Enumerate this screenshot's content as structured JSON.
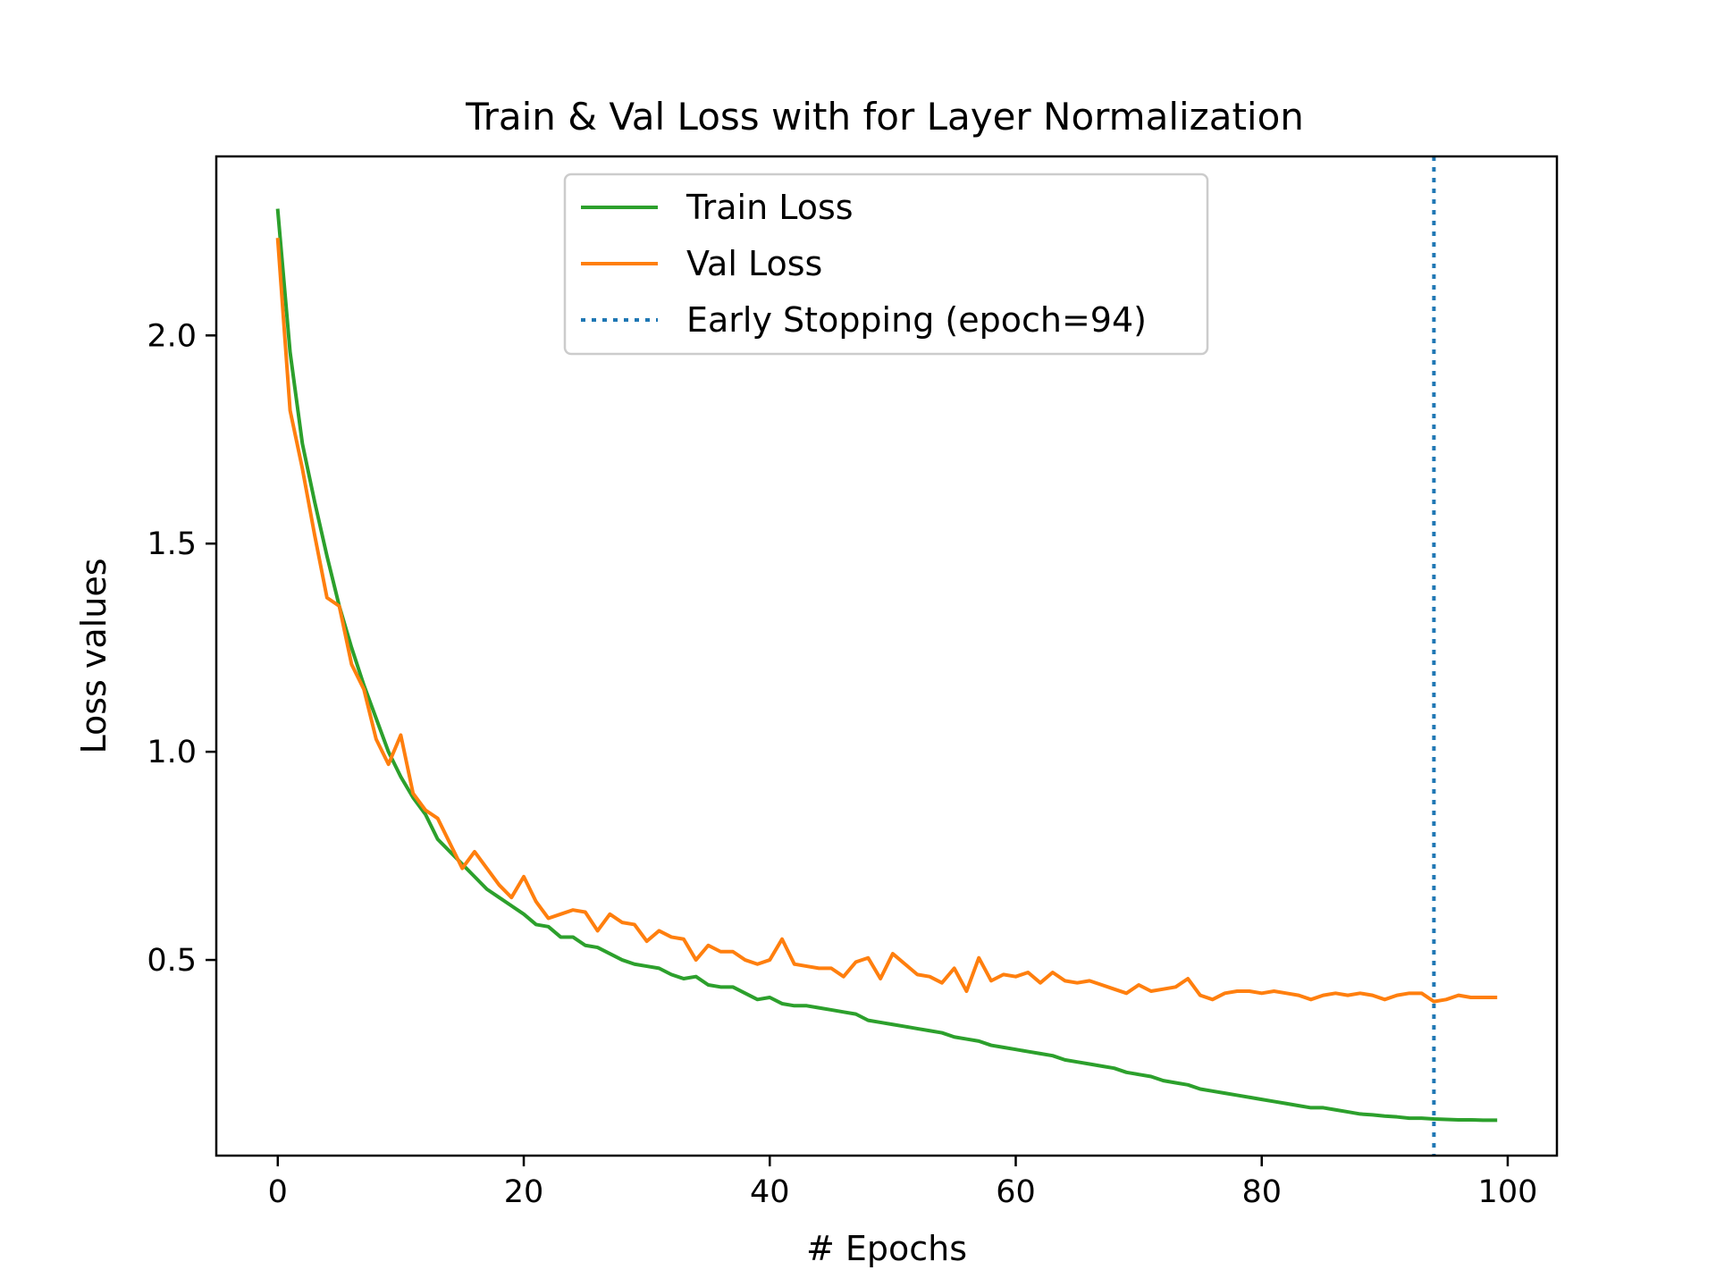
{
  "chart_data": {
    "type": "line",
    "title": "Train & Val Loss with for Layer Normalization",
    "xlabel": "# Epochs",
    "ylabel": "Loss values",
    "xlim": [
      -5,
      104
    ],
    "ylim": [
      0.03,
      2.43
    ],
    "x_ticks": [
      0,
      20,
      40,
      60,
      80,
      100
    ],
    "y_ticks": [
      0.5,
      1.0,
      1.5,
      2.0
    ],
    "x_tick_labels": [
      "0",
      "20",
      "40",
      "60",
      "80",
      "100"
    ],
    "y_tick_labels": [
      "0.5",
      "1.0",
      "1.5",
      "2.0"
    ],
    "grid": false,
    "legend_position": "top-center",
    "series": [
      {
        "name": "Train Loss",
        "color": "#2ca02c",
        "style": "solid",
        "values": [
          2.3,
          1.96,
          1.74,
          1.6,
          1.47,
          1.35,
          1.25,
          1.16,
          1.08,
          1.0,
          0.94,
          0.89,
          0.85,
          0.79,
          0.76,
          0.73,
          0.7,
          0.67,
          0.65,
          0.63,
          0.61,
          0.585,
          0.58,
          0.555,
          0.555,
          0.535,
          0.53,
          0.515,
          0.5,
          0.49,
          0.485,
          0.48,
          0.465,
          0.455,
          0.46,
          0.44,
          0.435,
          0.435,
          0.42,
          0.405,
          0.41,
          0.395,
          0.39,
          0.39,
          0.385,
          0.38,
          0.375,
          0.37,
          0.355,
          0.35,
          0.345,
          0.34,
          0.335,
          0.33,
          0.325,
          0.315,
          0.31,
          0.305,
          0.295,
          0.29,
          0.285,
          0.28,
          0.275,
          0.27,
          0.26,
          0.255,
          0.25,
          0.245,
          0.24,
          0.23,
          0.225,
          0.22,
          0.21,
          0.205,
          0.2,
          0.19,
          0.185,
          0.18,
          0.175,
          0.17,
          0.165,
          0.16,
          0.155,
          0.15,
          0.145,
          0.145,
          0.14,
          0.135,
          0.13,
          0.128,
          0.125,
          0.123,
          0.12,
          0.12,
          0.118,
          0.117,
          0.116,
          0.116,
          0.115,
          0.115
        ]
      },
      {
        "name": "Val Loss",
        "color": "#ff7f0e",
        "style": "solid",
        "values": [
          2.23,
          1.82,
          1.68,
          1.52,
          1.37,
          1.35,
          1.21,
          1.15,
          1.03,
          0.97,
          1.04,
          0.9,
          0.86,
          0.84,
          0.78,
          0.72,
          0.76,
          0.72,
          0.68,
          0.65,
          0.7,
          0.64,
          0.6,
          0.61,
          0.62,
          0.615,
          0.57,
          0.61,
          0.59,
          0.585,
          0.545,
          0.57,
          0.555,
          0.55,
          0.5,
          0.535,
          0.52,
          0.52,
          0.5,
          0.49,
          0.5,
          0.55,
          0.49,
          0.485,
          0.48,
          0.48,
          0.46,
          0.495,
          0.505,
          0.455,
          0.515,
          0.49,
          0.465,
          0.46,
          0.445,
          0.48,
          0.425,
          0.505,
          0.45,
          0.465,
          0.46,
          0.47,
          0.445,
          0.47,
          0.45,
          0.445,
          0.45,
          0.44,
          0.43,
          0.42,
          0.44,
          0.425,
          0.43,
          0.435,
          0.455,
          0.415,
          0.405,
          0.42,
          0.425,
          0.425,
          0.42,
          0.425,
          0.42,
          0.415,
          0.405,
          0.415,
          0.42,
          0.415,
          0.42,
          0.415,
          0.405,
          0.415,
          0.42,
          0.42,
          0.4,
          0.405,
          0.415,
          0.41,
          0.41,
          0.41
        ]
      }
    ],
    "vline": {
      "name": "Early Stopping (epoch=94)",
      "x": 94,
      "color": "#1f77b4",
      "style": "dotted"
    }
  }
}
